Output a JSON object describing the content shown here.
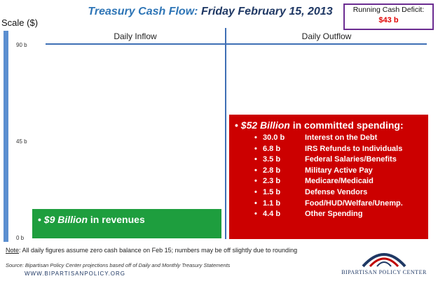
{
  "header": {
    "title_part1": "Treasury Cash Flow:",
    "title_part2": "Friday February 15, 2013"
  },
  "deficit": {
    "label": "Running Cash Deficit:",
    "value": "$43 b"
  },
  "colors": {
    "inflow": "#1e9e3e",
    "outflow": "#cc0000",
    "axis": "#5b8fd0",
    "title_blue": "#2e75b6",
    "deficit_border": "#6b2c91"
  },
  "chart_data": {
    "type": "bar",
    "ylabel": "Scale ($)",
    "ylim": [
      0,
      90
    ],
    "yticks": [
      "90 b",
      "45 b",
      "0 b"
    ],
    "categories": [
      "Daily Inflow",
      "Daily Outflow"
    ],
    "values": [
      9,
      52
    ],
    "inflow": {
      "bullet": "•",
      "amount": "$9 Billion",
      "text": "in revenues"
    },
    "outflow": {
      "bullet": "•",
      "amount": "$52 Billion",
      "text": "in committed spending:",
      "items": [
        {
          "amount": "30.0 b",
          "label": "Interest on the Debt"
        },
        {
          "amount": "6.8 b",
          "label": "IRS Refunds to Individuals"
        },
        {
          "amount": "3.5 b",
          "label": "Federal  Salaries/Benefits"
        },
        {
          "amount": "2.8 b",
          "label": "Military Active Pay"
        },
        {
          "amount": "2.3 b",
          "label": "Medicare/Medicaid"
        },
        {
          "amount": "1.5 b",
          "label": "Defense Vendors"
        },
        {
          "amount": "1.1 b",
          "label": "Food/HUD/Welfare/Unemp."
        },
        {
          "amount": "4.4 b",
          "label": "Other Spending"
        }
      ]
    }
  },
  "footer": {
    "note_label": "Note",
    "note_text": ": All daily figures assume zero cash balance on Feb 15; numbers may be off slightly due to rounding",
    "source": "Source: Bipartisan Policy Center projections based off of Daily and Monthly Treasury  Statements",
    "website": "WWW.BIPARTISANPOLICY.ORG",
    "logo_text": "BIPARTISAN POLICY CENTER"
  }
}
